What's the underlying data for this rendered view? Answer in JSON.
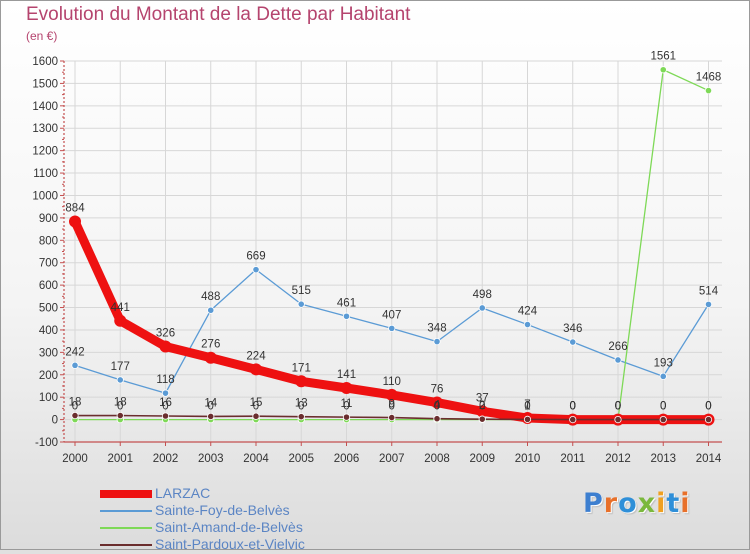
{
  "header": {
    "title": "Evolution du Montant de la Dette par Habitant",
    "subtitle": "(en €)"
  },
  "logo": {
    "text": "Proxiti",
    "letter_colors": [
      "#3d7fd0",
      "#e8702a",
      "#2f8fd8",
      "#7bb83d",
      "#f0a020",
      "#2f8fd8",
      "#e8702a"
    ]
  },
  "colors": {
    "title": "#b5446e",
    "axis": "#c44f4f",
    "grid": "#d7d7d7",
    "label": "#333333"
  },
  "chart_data": {
    "type": "line",
    "title": "Evolution du Montant de la Dette par Habitant",
    "subtitle": "(en €)",
    "x": [
      2000,
      2001,
      2002,
      2003,
      2004,
      2005,
      2006,
      2007,
      2008,
      2009,
      2010,
      2011,
      2012,
      2013,
      2014
    ],
    "ylim": [
      -100,
      1600
    ],
    "yticks": [
      -100,
      0,
      100,
      200,
      300,
      400,
      500,
      600,
      700,
      800,
      900,
      1000,
      1100,
      1200,
      1300,
      1400,
      1500,
      1600
    ],
    "grid": true,
    "legend_position": "bottom-left",
    "series": [
      {
        "name": "LARZAC",
        "color": "#ee1111",
        "values": [
          884,
          441,
          326,
          276,
          224,
          171,
          141,
          110,
          76,
          37,
          7,
          0,
          0,
          0,
          0
        ],
        "labels": [
          "884",
          "441",
          "326",
          "276",
          "224",
          "171",
          "141",
          "110",
          "76",
          "37",
          "7",
          "0",
          "0",
          "0",
          "0"
        ]
      },
      {
        "name": "Sainte-Foy-de-Belvès",
        "color": "#5b9bd5",
        "values": [
          242,
          177,
          118,
          488,
          669,
          515,
          461,
          407,
          348,
          498,
          424,
          346,
          266,
          193,
          514
        ],
        "labels": [
          "242",
          "177",
          "118",
          "488",
          "669",
          "515",
          "461",
          "407",
          "348",
          "498",
          "424",
          "346",
          "266",
          "193",
          "514"
        ]
      },
      {
        "name": "Saint-Amand-de-Belvès",
        "color": "#7ed957",
        "values": [
          0,
          0,
          0,
          0,
          0,
          0,
          0,
          0,
          0,
          0,
          0,
          0,
          0,
          1561,
          1468
        ],
        "labels": [
          "0",
          "0",
          "0",
          "0",
          "0",
          "0",
          "0",
          "0",
          "0",
          "0",
          "0",
          "0",
          "0",
          "1561",
          "1468"
        ]
      },
      {
        "name": "Saint-Pardoux-et-Vielvic",
        "color": "#6b2e2e",
        "values": [
          18,
          18,
          16,
          14,
          15,
          13,
          11,
          9,
          4,
          2,
          1,
          0,
          0,
          0,
          0
        ],
        "labels": [
          "18",
          "18",
          "16",
          "14",
          "15",
          "13",
          "11",
          "9",
          "4",
          "2",
          "1",
          "0",
          "0",
          "0",
          "0"
        ]
      }
    ]
  }
}
